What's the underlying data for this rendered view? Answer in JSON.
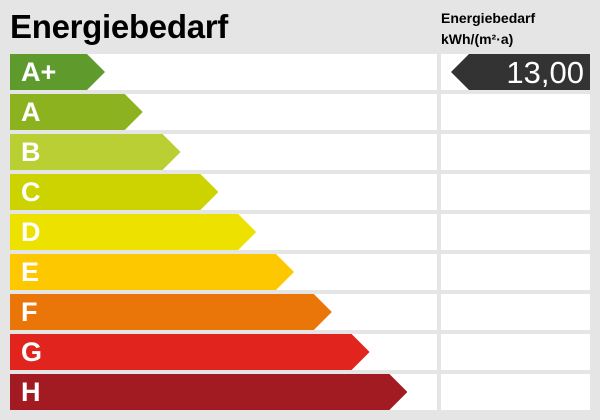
{
  "title": "Energiebedarf",
  "value_header": {
    "line1": "Energiebedarf",
    "line2": "kWh/(m²·a)"
  },
  "classes": [
    {
      "label": "A+",
      "color": "#5e9b2c"
    },
    {
      "label": "A",
      "color": "#8db21f"
    },
    {
      "label": "B",
      "color": "#b9cf33"
    },
    {
      "label": "C",
      "color": "#cdd300"
    },
    {
      "label": "D",
      "color": "#ede100"
    },
    {
      "label": "E",
      "color": "#fdc800"
    },
    {
      "label": "F",
      "color": "#ea7609"
    },
    {
      "label": "G",
      "color": "#e2241f"
    },
    {
      "label": "H",
      "color": "#a31b22"
    }
  ],
  "current": {
    "value": "13,00",
    "class_index": 0,
    "color": "#333333"
  }
}
